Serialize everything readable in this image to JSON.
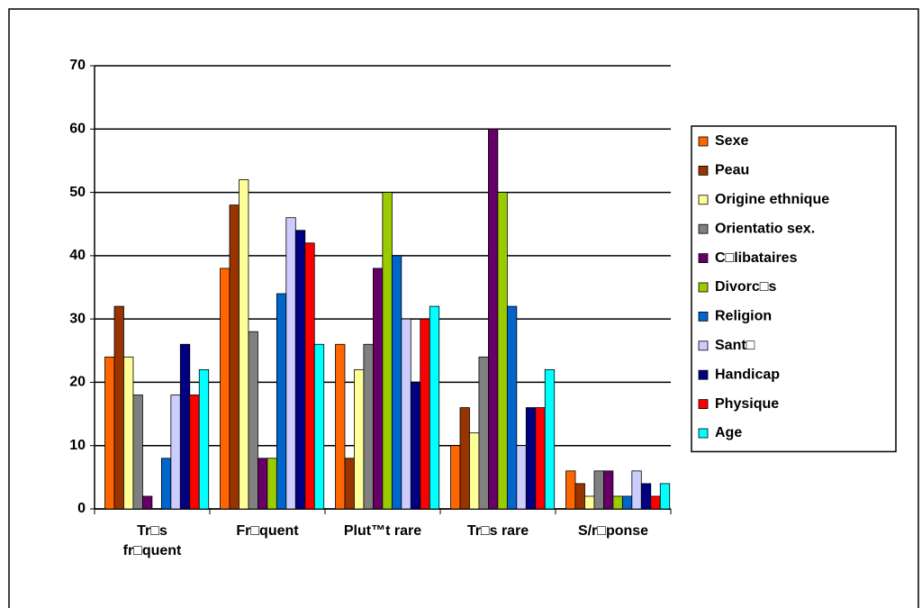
{
  "chart_data": {
    "type": "bar",
    "categories": [
      "Tr□s fr□quent",
      "Fr□quent",
      "Plut™t rare",
      "Tr□s rare",
      "S/r□ponse"
    ],
    "series": [
      {
        "name": "Sexe",
        "color": "#ff6600",
        "values": [
          24,
          38,
          26,
          10,
          6
        ]
      },
      {
        "name": "Peau",
        "color": "#993300",
        "values": [
          32,
          48,
          8,
          16,
          4
        ]
      },
      {
        "name": "Origine ethnique",
        "color": "#ffff99",
        "values": [
          24,
          52,
          22,
          12,
          2
        ]
      },
      {
        "name": "Orientatio sex.",
        "color": "#808080",
        "values": [
          18,
          28,
          26,
          24,
          6
        ]
      },
      {
        "name": "C□libataires",
        "color": "#660066",
        "values": [
          2,
          8,
          38,
          60,
          6
        ]
      },
      {
        "name": "Divorc□s",
        "color": "#99cc00",
        "values": [
          0,
          8,
          50,
          50,
          2
        ]
      },
      {
        "name": "Religion",
        "color": "#0066cc",
        "values": [
          8,
          34,
          40,
          32,
          2
        ]
      },
      {
        "name": "Sant□",
        "color": "#ccccff",
        "values": [
          18,
          46,
          30,
          10,
          6
        ]
      },
      {
        "name": "Handicap",
        "color": "#000080",
        "values": [
          26,
          44,
          20,
          16,
          4
        ]
      },
      {
        "name": "Physique",
        "color": "#ff0000",
        "values": [
          18,
          42,
          30,
          16,
          2
        ]
      },
      {
        "name": "Age",
        "color": "#00ffff",
        "values": [
          22,
          26,
          32,
          22,
          4
        ]
      }
    ],
    "ylim": [
      0,
      70
    ],
    "yticks": [
      0,
      10,
      20,
      30,
      40,
      50,
      60,
      70
    ],
    "grid": true,
    "legend": "right"
  }
}
